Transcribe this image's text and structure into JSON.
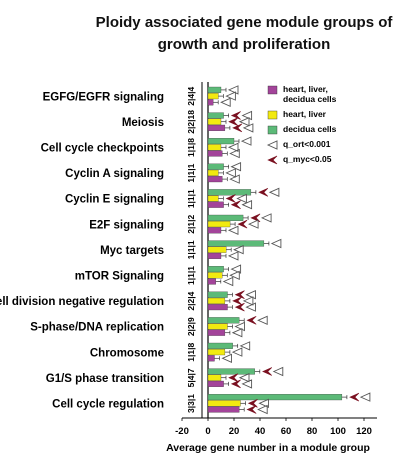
{
  "chart_data": {
    "type": "bar",
    "orientation": "horizontal",
    "title_lines": [
      "Ploidy associated gene module groups of",
      "growth and proliferation"
    ],
    "xlabel": "Average gene number in a module group",
    "x_ticks": [
      "-20",
      "0",
      "20",
      "40",
      "60",
      "80",
      "100",
      "120"
    ],
    "xlim": [
      -20,
      130
    ],
    "colors": {
      "heart_liver_decidua": "#a3449a",
      "heart_liver": "#f2ea10",
      "decidua": "#5cba78",
      "marker_ort": "#555555",
      "marker_myc": "#7a1020"
    },
    "legend": [
      {
        "label_lines": [
          "heart, liver,",
          "decidua cells"
        ],
        "kind": "box",
        "color": "#a3449a"
      },
      {
        "label_lines": [
          "heart, liver"
        ],
        "kind": "box",
        "color": "#f2ea10"
      },
      {
        "label_lines": [
          "decidua cells"
        ],
        "kind": "box",
        "color": "#5cba78"
      },
      {
        "label_lines": [
          "q_ort<0.001"
        ],
        "kind": "open-triangle",
        "color": "#555555"
      },
      {
        "label_lines": [
          "q_myc<0.05"
        ],
        "kind": "filled-triangle",
        "color": "#7a1020"
      }
    ],
    "categories": [
      {
        "name": "EGFG/EGFR signaling",
        "ratio": "2|4|4",
        "values": {
          "decidua": 10,
          "heart_liver": 8,
          "heart_liver_decidua": 4
        },
        "ort": [
          true,
          true,
          true
        ],
        "myc": [
          false,
          false,
          false
        ]
      },
      {
        "name": "Meiosis",
        "ratio": "2|2|18",
        "values": {
          "decidua": 12,
          "heart_liver": 10,
          "heart_liver_decidua": 13
        },
        "ort": [
          true,
          true,
          true
        ],
        "myc": [
          true,
          true,
          true
        ]
      },
      {
        "name": "Cell cycle checkpoints",
        "ratio": "1|1|8",
        "values": {
          "decidua": 20,
          "heart_liver": 10,
          "heart_liver_decidua": 11
        },
        "ort": [
          true,
          true,
          true
        ],
        "myc": [
          false,
          false,
          false
        ]
      },
      {
        "name": "Cyclin A signaling",
        "ratio": "1|1|1",
        "values": {
          "decidua": 12,
          "heart_liver": 8,
          "heart_liver_decidua": 11
        },
        "ort": [
          true,
          true,
          true
        ],
        "myc": [
          false,
          false,
          false
        ]
      },
      {
        "name": "Cyclin E signaling",
        "ratio": "1|1|1",
        "values": {
          "decidua": 33,
          "heart_liver": 8,
          "heart_liver_decidua": 12
        },
        "ort": [
          true,
          true,
          true
        ],
        "myc": [
          true,
          true,
          true
        ]
      },
      {
        "name": "E2F signaling",
        "ratio": "2|1|2",
        "values": {
          "decidua": 27,
          "heart_liver": 17,
          "heart_liver_decidua": 10
        },
        "ort": [
          true,
          true,
          true
        ],
        "myc": [
          true,
          true,
          false
        ]
      },
      {
        "name": "Myc targets",
        "ratio": "1|1|1",
        "values": {
          "decidua": 43,
          "heart_liver": 14,
          "heart_liver_decidua": 10
        },
        "ort": [
          true,
          true,
          true
        ],
        "myc": [
          false,
          false,
          false
        ]
      },
      {
        "name": "mTOR Signaling",
        "ratio": "1|1|1",
        "values": {
          "decidua": 12,
          "heart_liver": 11,
          "heart_liver_decidua": 6
        },
        "ort": [
          true,
          true,
          true
        ],
        "myc": [
          false,
          false,
          false
        ]
      },
      {
        "name": "Cell division negative regulation",
        "ratio": "2|2|4",
        "values": {
          "decidua": 15,
          "heart_liver": 13,
          "heart_liver_decidua": 15
        },
        "ort": [
          true,
          true,
          true
        ],
        "myc": [
          true,
          true,
          true
        ]
      },
      {
        "name": "S-phase/DNA replication",
        "ratio": "2|2|9",
        "values": {
          "decidua": 24,
          "heart_liver": 15,
          "heart_liver_decidua": 13
        },
        "ort": [
          true,
          true,
          true
        ],
        "myc": [
          true,
          false,
          false
        ]
      },
      {
        "name": "Chromosome",
        "ratio": "1|1|8",
        "values": {
          "decidua": 19,
          "heart_liver": 13,
          "heart_liver_decidua": 5
        },
        "ort": [
          true,
          true,
          true
        ],
        "myc": [
          false,
          false,
          false
        ]
      },
      {
        "name": "G1/S phase transition",
        "ratio": "5|4|7",
        "values": {
          "decidua": 36,
          "heart_liver": 10,
          "heart_liver_decidua": 12
        },
        "ort": [
          true,
          true,
          true
        ],
        "myc": [
          true,
          true,
          true
        ]
      },
      {
        "name": "Cell cycle regulation",
        "ratio": "3|3|1",
        "values": {
          "decidua": 103,
          "heart_liver": 25,
          "heart_liver_decidua": 24
        },
        "ort": [
          true,
          true,
          true
        ],
        "myc": [
          true,
          true,
          true
        ]
      }
    ]
  }
}
